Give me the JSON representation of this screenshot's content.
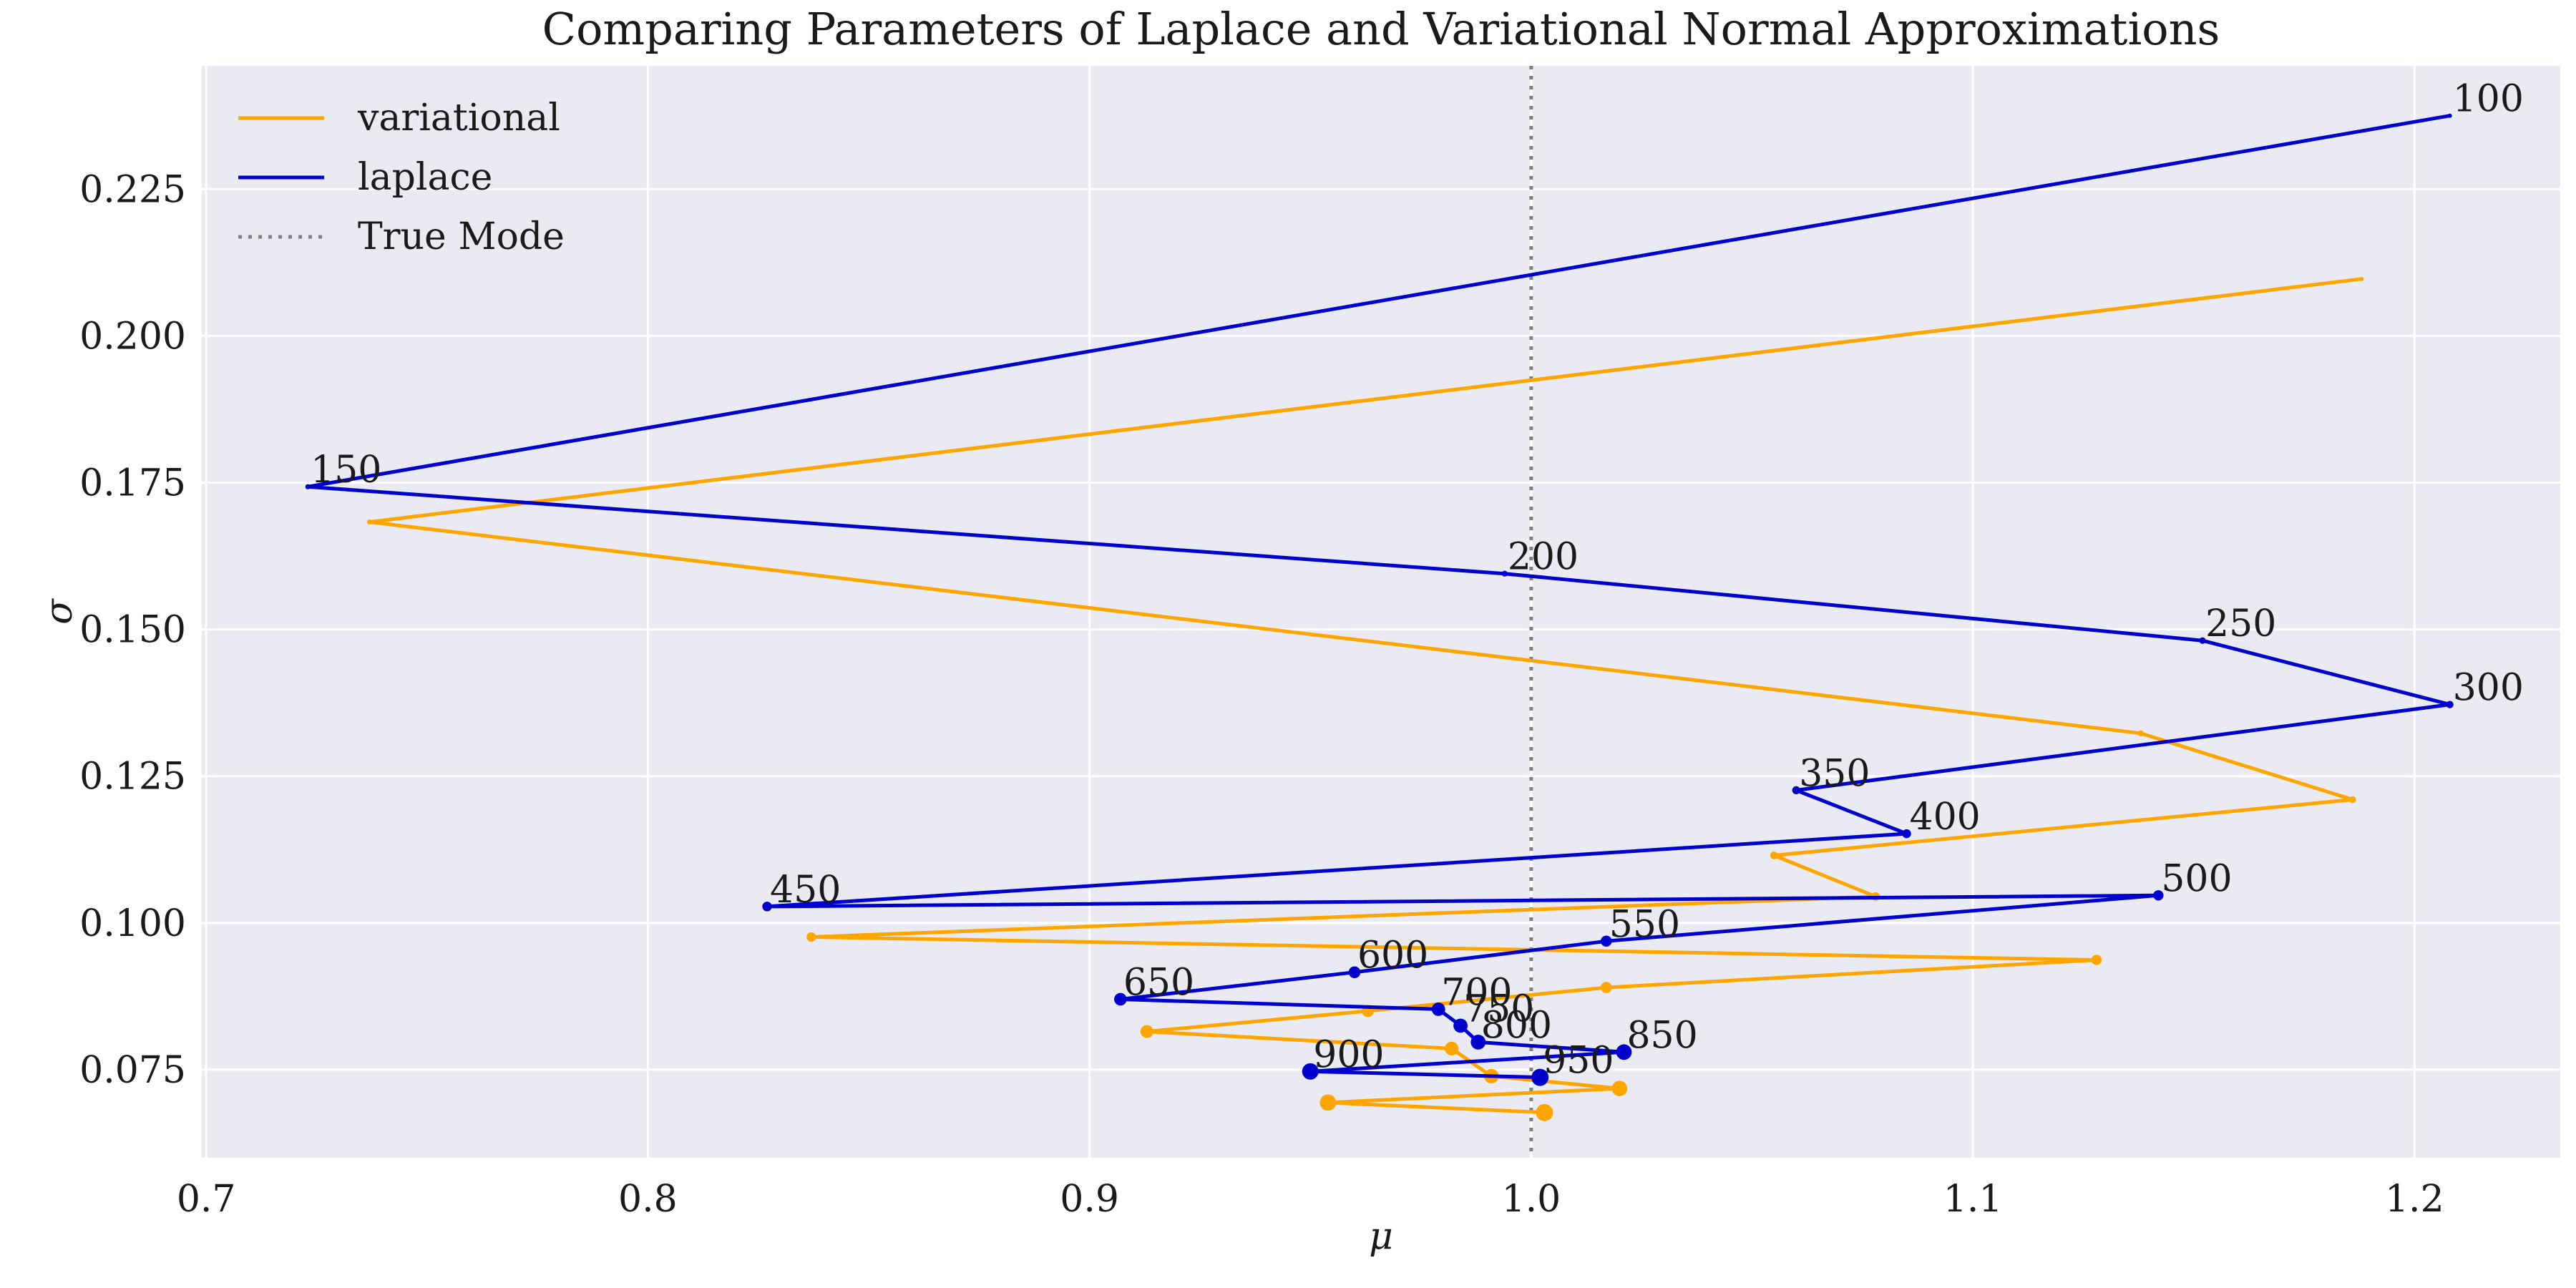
{
  "chart_data": {
    "type": "line",
    "title": "Comparing Parameters of Laplace and Variational Normal Approximations",
    "xlabel": "μ",
    "ylabel": "σ",
    "xlim": [
      0.699,
      1.233
    ],
    "ylim": [
      0.06,
      0.246
    ],
    "xticks": [
      0.7,
      0.8,
      0.9,
      1.0,
      1.1,
      1.2
    ],
    "xtick_labels": [
      "0.7",
      "0.8",
      "0.9",
      "1.0",
      "1.1",
      "1.2"
    ],
    "yticks": [
      0.075,
      0.1,
      0.125,
      0.15,
      0.175,
      0.2,
      0.225
    ],
    "ytick_labels": [
      "0.075",
      "0.100",
      "0.125",
      "0.150",
      "0.175",
      "0.200",
      "0.225"
    ],
    "grid": true,
    "background": "#eaeaf2",
    "legend_position": "top-left",
    "true_mode": {
      "name": "True Mode",
      "x": 1.0,
      "color": "#808080",
      "style": "dotted"
    },
    "series": [
      {
        "name": "variational",
        "color": "#FFA500",
        "points": [
          {
            "mu": 1.188,
            "sigma": 0.2097
          },
          {
            "mu": 0.737,
            "sigma": 0.1683
          },
          {
            "mu": 1.138,
            "sigma": 0.1323
          },
          {
            "mu": 1.186,
            "sigma": 0.121
          },
          {
            "mu": 1.055,
            "sigma": 0.1115
          },
          {
            "mu": 1.078,
            "sigma": 0.1045
          },
          {
            "mu": 0.837,
            "sigma": 0.0976
          },
          {
            "mu": 1.128,
            "sigma": 0.0937
          },
          {
            "mu": 1.017,
            "sigma": 0.089
          },
          {
            "mu": 0.963,
            "sigma": 0.085
          },
          {
            "mu": 0.913,
            "sigma": 0.0815
          },
          {
            "mu": 0.982,
            "sigma": 0.0786
          },
          {
            "mu": 0.991,
            "sigma": 0.0739
          },
          {
            "mu": 1.02,
            "sigma": 0.0718
          },
          {
            "mu": 0.954,
            "sigma": 0.0694
          },
          {
            "mu": 1.003,
            "sigma": 0.0677
          }
        ]
      },
      {
        "name": "laplace",
        "color": "#0000CD",
        "points": [
          {
            "mu": 1.208,
            "sigma": 0.2375,
            "label": "100"
          },
          {
            "mu": 0.723,
            "sigma": 0.1743,
            "label": "150"
          },
          {
            "mu": 0.994,
            "sigma": 0.1595,
            "label": "200"
          },
          {
            "mu": 1.152,
            "sigma": 0.1481,
            "label": "250"
          },
          {
            "mu": 1.208,
            "sigma": 0.1372,
            "label": "300"
          },
          {
            "mu": 1.06,
            "sigma": 0.1226,
            "label": "350"
          },
          {
            "mu": 1.085,
            "sigma": 0.1152,
            "label": "400"
          },
          {
            "mu": 0.827,
            "sigma": 0.1028,
            "label": "450"
          },
          {
            "mu": 1.142,
            "sigma": 0.1047,
            "label": "500"
          },
          {
            "mu": 1.017,
            "sigma": 0.0969,
            "label": "550"
          },
          {
            "mu": 0.96,
            "sigma": 0.0916,
            "label": "600"
          },
          {
            "mu": 0.907,
            "sigma": 0.087,
            "label": "650"
          },
          {
            "mu": 0.979,
            "sigma": 0.0853,
            "label": "700"
          },
          {
            "mu": 0.984,
            "sigma": 0.0825,
            "label": "750"
          },
          {
            "mu": 0.988,
            "sigma": 0.0797,
            "label": "800"
          },
          {
            "mu": 1.021,
            "sigma": 0.078,
            "label": "850"
          },
          {
            "mu": 0.95,
            "sigma": 0.0747,
            "label": "900"
          },
          {
            "mu": 1.002,
            "sigma": 0.0737,
            "label": "950"
          }
        ]
      }
    ]
  }
}
